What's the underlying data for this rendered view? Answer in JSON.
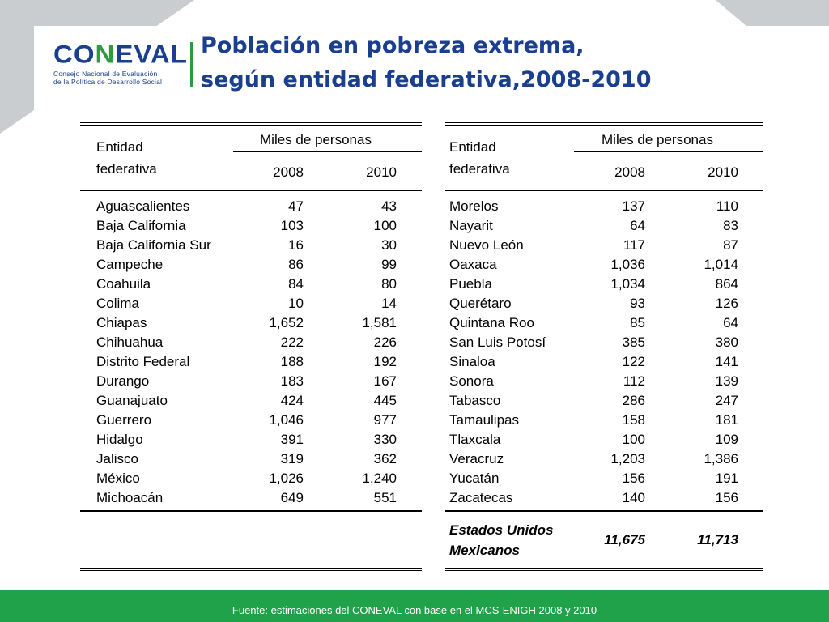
{
  "logo": {
    "word_a": "CO",
    "word_b": "N",
    "word_c": "EVAL",
    "subtitle_line1": "Consejo Nacional de Evaluación",
    "subtitle_line2": "de la Política de Desarrollo Social"
  },
  "title": {
    "line1": "Población en pobreza extrema,",
    "line2": "según entidad federativa,2008-2010"
  },
  "table_header": {
    "entity_line1": "Entidad",
    "entity_line2": "federativa",
    "group": "Miles de personas",
    "year1": "2008",
    "year2": "2010"
  },
  "left_rows": [
    {
      "name": "Aguascalientes",
      "v2008": "47",
      "v2010": "43"
    },
    {
      "name": "Baja California",
      "v2008": "103",
      "v2010": "100"
    },
    {
      "name": "Baja California Sur",
      "v2008": "16",
      "v2010": "30"
    },
    {
      "name": "Campeche",
      "v2008": "86",
      "v2010": "99"
    },
    {
      "name": "Coahuila",
      "v2008": "84",
      "v2010": "80"
    },
    {
      "name": "Colima",
      "v2008": "10",
      "v2010": "14"
    },
    {
      "name": "Chiapas",
      "v2008": "1,652",
      "v2010": "1,581"
    },
    {
      "name": "Chihuahua",
      "v2008": "222",
      "v2010": "226"
    },
    {
      "name": "Distrito Federal",
      "v2008": "188",
      "v2010": "192"
    },
    {
      "name": "Durango",
      "v2008": "183",
      "v2010": "167"
    },
    {
      "name": "Guanajuato",
      "v2008": "424",
      "v2010": "445"
    },
    {
      "name": "Guerrero",
      "v2008": "1,046",
      "v2010": "977"
    },
    {
      "name": "Hidalgo",
      "v2008": "391",
      "v2010": "330"
    },
    {
      "name": "Jalisco",
      "v2008": "319",
      "v2010": "362"
    },
    {
      "name": "México",
      "v2008": "1,026",
      "v2010": "1,240"
    },
    {
      "name": "Michoacán",
      "v2008": "649",
      "v2010": "551"
    }
  ],
  "right_rows": [
    {
      "name": "Morelos",
      "v2008": "137",
      "v2010": "110"
    },
    {
      "name": "Nayarit",
      "v2008": "64",
      "v2010": "83"
    },
    {
      "name": "Nuevo León",
      "v2008": "117",
      "v2010": "87"
    },
    {
      "name": "Oaxaca",
      "v2008": "1,036",
      "v2010": "1,014"
    },
    {
      "name": "Puebla",
      "v2008": "1,034",
      "v2010": "864"
    },
    {
      "name": "Querétaro",
      "v2008": "93",
      "v2010": "126"
    },
    {
      "name": "Quintana Roo",
      "v2008": "85",
      "v2010": "64"
    },
    {
      "name": "San Luis Potosí",
      "v2008": "385",
      "v2010": "380"
    },
    {
      "name": "Sinaloa",
      "v2008": "122",
      "v2010": "141"
    },
    {
      "name": "Sonora",
      "v2008": "112",
      "v2010": "139"
    },
    {
      "name": "Tabasco",
      "v2008": "286",
      "v2010": "247"
    },
    {
      "name": "Tamaulipas",
      "v2008": "158",
      "v2010": "181"
    },
    {
      "name": "Tlaxcala",
      "v2008": "100",
      "v2010": "109"
    },
    {
      "name": "Veracruz",
      "v2008": "1,203",
      "v2010": "1,386"
    },
    {
      "name": "Yucatán",
      "v2008": "156",
      "v2010": "191"
    },
    {
      "name": "Zacatecas",
      "v2008": "140",
      "v2010": "156"
    }
  ],
  "total": {
    "name_line1": "Estados Unidos",
    "name_line2": "Mexicanos",
    "v2008": "11,675",
    "v2010": "11,713"
  },
  "footer": {
    "source": "Fuente: estimaciones del CONEVAL con base en el MCS-ENIGH 2008 y 2010"
  },
  "colors": {
    "title_blue": "#1a3f8e",
    "accent_green": "#2e9c3e",
    "footer_green": "#20a24a",
    "decor_gray": "#c9cdd0"
  }
}
